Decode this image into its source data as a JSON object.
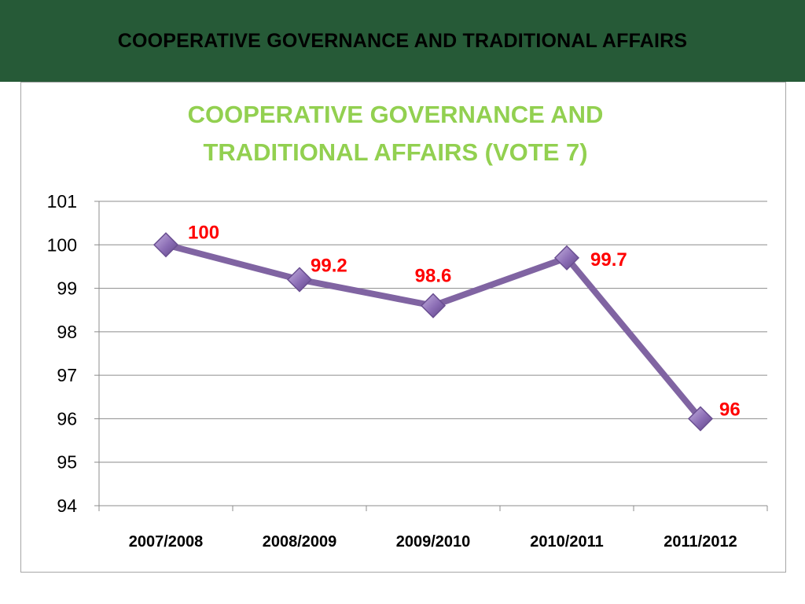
{
  "header": {
    "title": "COOPERATIVE GOVERNANCE AND TRADITIONAL AFFAIRS"
  },
  "colors": {
    "header_bg": "#265a37",
    "title_green": "#92d050",
    "series_purple": "#8064a2",
    "label_red": "#ff0000"
  },
  "chart_data": {
    "type": "line",
    "title_lines": [
      "COOPERATIVE GOVERNANCE AND",
      "TRADITIONAL AFFAIRS (VOTE 7)"
    ],
    "xlabel": "",
    "ylabel": "",
    "categories": [
      "2007/2008",
      "2008/2009",
      "2009/2010",
      "2010/2011",
      "2011/2012"
    ],
    "series": [
      {
        "values": [
          100,
          99.2,
          98.6,
          99.7,
          96
        ],
        "marker": "diamond"
      }
    ],
    "data_labels": [
      "100",
      "99.2",
      "98.6",
      "99.7",
      "96"
    ],
    "ylim": [
      94,
      101
    ],
    "yticks": [
      "94",
      "95",
      "96",
      "97",
      "98",
      "99",
      "100",
      "101"
    ],
    "grid": true,
    "legend": "none"
  }
}
